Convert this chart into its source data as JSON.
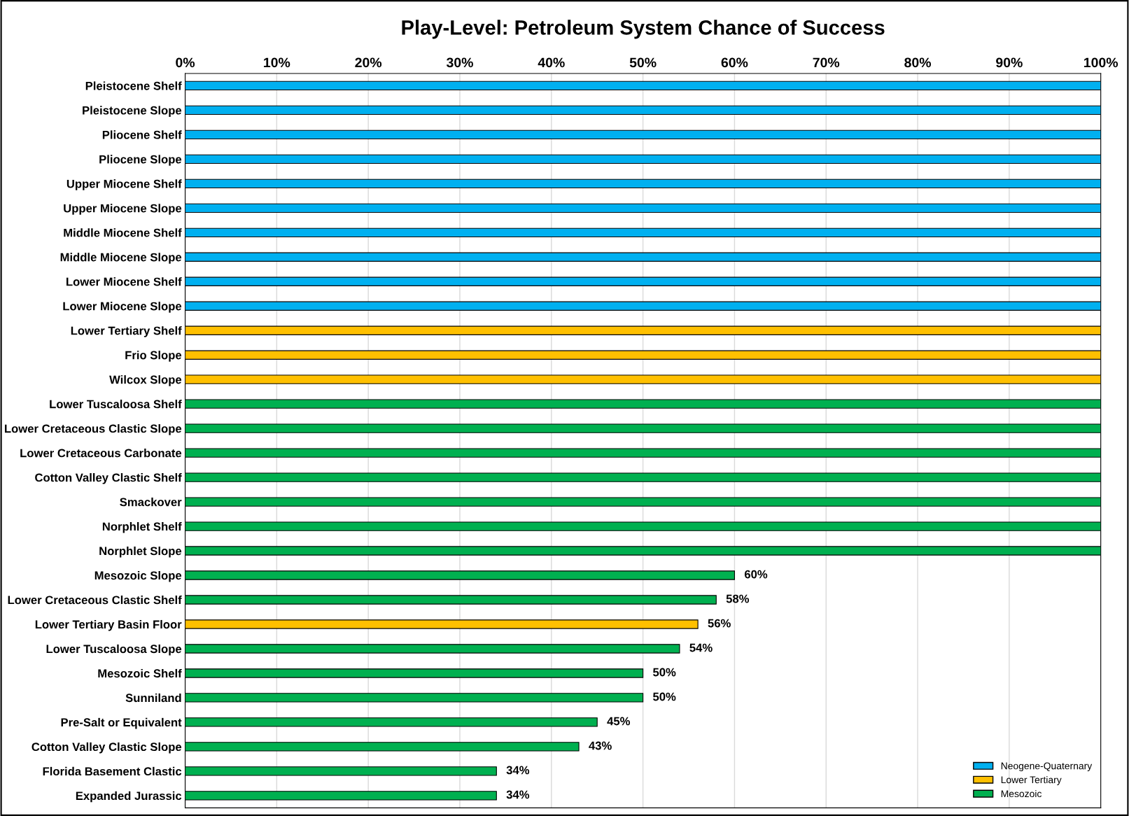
{
  "chart_data": {
    "type": "bar",
    "orientation": "horizontal",
    "title": "Play-Level: Petroleum System Chance of Success",
    "categories": [
      "Pleistocene Shelf",
      "Pleistocene Slope",
      "Pliocene Shelf",
      "Pliocene Slope",
      "Upper Miocene Shelf",
      "Upper Miocene Slope",
      "Middle Miocene Shelf",
      "Middle Miocene Slope",
      "Lower Miocene Shelf",
      "Lower Miocene Slope",
      "Lower Tertiary Shelf",
      "Frio Slope",
      "Wilcox Slope",
      "Lower Tuscaloosa Shelf",
      "Lower Cretaceous Clastic Slope",
      "Lower Cretaceous Carbonate",
      "Cotton Valley Clastic Shelf",
      "Smackover",
      "Norphlet Shelf",
      "Norphlet Slope",
      "Mesozoic Slope",
      "Lower Cretaceous Clastic Shelf",
      "Lower Tertiary Basin Floor",
      "Lower Tuscaloosa Slope",
      "Mesozoic Shelf",
      "Sunniland",
      "Pre-Salt or Equivalent",
      "Cotton Valley Clastic Slope",
      "Florida Basement Clastic",
      "Expanded Jurassic"
    ],
    "series": [
      {
        "name": "Neogene-Quaternary",
        "color": "#00b0f0",
        "values": [
          100,
          100,
          100,
          100,
          100,
          100,
          100,
          100,
          100,
          100,
          null,
          null,
          null,
          null,
          null,
          null,
          null,
          null,
          null,
          null,
          null,
          null,
          null,
          null,
          null,
          null,
          null,
          null,
          null,
          null
        ],
        "value_labels": [
          null,
          null,
          null,
          null,
          null,
          null,
          null,
          null,
          null,
          null,
          null,
          null,
          null,
          null,
          null,
          null,
          null,
          null,
          null,
          null,
          null,
          null,
          null,
          null,
          null,
          null,
          null,
          null,
          null,
          null
        ]
      },
      {
        "name": "Lower Tertiary",
        "color": "#ffc000",
        "values": [
          null,
          null,
          null,
          null,
          null,
          null,
          null,
          null,
          null,
          null,
          100,
          100,
          100,
          null,
          null,
          null,
          null,
          null,
          null,
          null,
          null,
          null,
          56,
          null,
          null,
          null,
          null,
          null,
          null,
          null
        ],
        "value_labels": [
          null,
          null,
          null,
          null,
          null,
          null,
          null,
          null,
          null,
          null,
          null,
          null,
          null,
          null,
          null,
          null,
          null,
          null,
          null,
          null,
          null,
          null,
          "56%",
          null,
          null,
          null,
          null,
          null,
          null,
          null
        ]
      },
      {
        "name": "Mesozoic",
        "color": "#00b050",
        "values": [
          null,
          null,
          null,
          null,
          null,
          null,
          null,
          null,
          null,
          null,
          null,
          null,
          null,
          100,
          100,
          100,
          100,
          100,
          100,
          100,
          60,
          58,
          null,
          54,
          50,
          50,
          45,
          43,
          34,
          34
        ],
        "value_labels": [
          null,
          null,
          null,
          null,
          null,
          null,
          null,
          null,
          null,
          null,
          null,
          null,
          null,
          null,
          null,
          null,
          null,
          null,
          null,
          null,
          "60%",
          "58%",
          null,
          "54%",
          "50%",
          "50%",
          "45%",
          "43%",
          "34%",
          "34%"
        ]
      }
    ],
    "xlim": [
      0,
      100
    ],
    "xticks": [
      {
        "value": 0,
        "label": "0%"
      },
      {
        "value": 10,
        "label": "10%"
      },
      {
        "value": 20,
        "label": "20%"
      },
      {
        "value": 30,
        "label": "30%"
      },
      {
        "value": 40,
        "label": "40%"
      },
      {
        "value": 50,
        "label": "50%"
      },
      {
        "value": 60,
        "label": "60%"
      },
      {
        "value": 70,
        "label": "70%"
      },
      {
        "value": 80,
        "label": "80%"
      },
      {
        "value": 90,
        "label": "90%"
      },
      {
        "value": 100,
        "label": "100%"
      }
    ],
    "grid": "x",
    "legend": "bottom right"
  }
}
